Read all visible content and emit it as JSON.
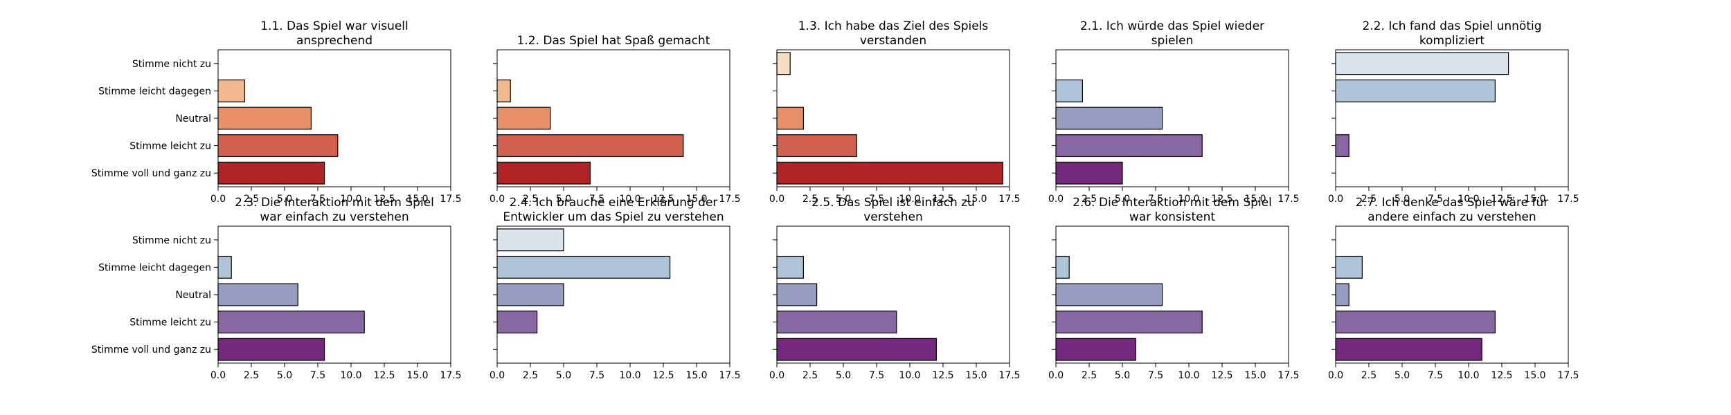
{
  "categories": [
    "Stimme nicht zu",
    "Stimme leicht dagegen",
    "Neutral",
    "Stimme leicht zu",
    "Stimme voll und ganz zu"
  ],
  "xticks": [
    "0.0",
    "2.5",
    "5.0",
    "7.5",
    "10.0",
    "12.5",
    "15.0",
    "17.5"
  ],
  "chart_data": [
    {
      "type": "bar",
      "orientation": "horizontal",
      "title": "1.1. Das Spiel war visuell ansprechend",
      "categories": [
        "Stimme nicht zu",
        "Stimme leicht dagegen",
        "Neutral",
        "Stimme leicht zu",
        "Stimme voll und ganz zu"
      ],
      "values": [
        0,
        2,
        7,
        9,
        8
      ],
      "xlim": [
        0,
        17.5
      ],
      "colors": [
        "#fde0c5",
        "#f0b88c",
        "#e8906a",
        "#d2604f",
        "#b02426"
      ]
    },
    {
      "type": "bar",
      "orientation": "horizontal",
      "title": "1.2. Das Spiel hat Spaß gemacht",
      "categories": [
        "Stimme nicht zu",
        "Stimme leicht dagegen",
        "Neutral",
        "Stimme leicht zu",
        "Stimme voll und ganz zu"
      ],
      "values": [
        0,
        1,
        4,
        14,
        7
      ],
      "xlim": [
        0,
        17.5
      ],
      "colors": [
        "#fde0c5",
        "#f0b88c",
        "#e8906a",
        "#d2604f",
        "#b02426"
      ]
    },
    {
      "type": "bar",
      "orientation": "horizontal",
      "title": "1.3. Ich habe das Ziel des Spiels verstanden",
      "categories": [
        "Stimme nicht zu",
        "Stimme leicht dagegen",
        "Neutral",
        "Stimme leicht zu",
        "Stimme voll und ganz zu"
      ],
      "values": [
        1,
        0,
        2,
        6,
        17
      ],
      "xlim": [
        0,
        17.5
      ],
      "colors": [
        "#f5dfc4",
        "#f0b88c",
        "#e8906a",
        "#d2604f",
        "#b02426"
      ]
    },
    {
      "type": "bar",
      "orientation": "horizontal",
      "title": "2.1. Ich würde das Spiel wieder spielen",
      "categories": [
        "Stimme nicht zu",
        "Stimme leicht dagegen",
        "Neutral",
        "Stimme leicht zu",
        "Stimme voll und ganz zu"
      ],
      "values": [
        0,
        2,
        8,
        11,
        5
      ],
      "xlim": [
        0,
        17.5
      ],
      "colors": [
        "#dbe3ec",
        "#afc4d8",
        "#979cc1",
        "#8868a3",
        "#74297d"
      ]
    },
    {
      "type": "bar",
      "orientation": "horizontal",
      "title": "2.2. Ich fand das Spiel unnötig kompliziert",
      "categories": [
        "Stimme nicht zu",
        "Stimme leicht dagegen",
        "Neutral",
        "Stimme leicht zu",
        "Stimme voll und ganz zu"
      ],
      "values": [
        13,
        12,
        0,
        1,
        0
      ],
      "xlim": [
        0,
        17.5
      ],
      "colors": [
        "#dbe3ec",
        "#afc4d8",
        "#979cc1",
        "#8868a3",
        "#74297d"
      ]
    },
    {
      "type": "bar",
      "orientation": "horizontal",
      "title": "2.3. Die Interaktion mit dem Spiel war einfach zu verstehen",
      "categories": [
        "Stimme nicht zu",
        "Stimme leicht dagegen",
        "Neutral",
        "Stimme leicht zu",
        "Stimme voll und ganz zu"
      ],
      "values": [
        0,
        1,
        6,
        11,
        8
      ],
      "xlim": [
        0,
        17.5
      ],
      "colors": [
        "#dbe3ec",
        "#afc4d8",
        "#979cc1",
        "#8868a3",
        "#74297d"
      ]
    },
    {
      "type": "bar",
      "orientation": "horizontal",
      "title": "2.4. Ich brauche eine Erklärung der Entwickler um das Spiel zu verstehen",
      "categories": [
        "Stimme nicht zu",
        "Stimme leicht dagegen",
        "Neutral",
        "Stimme leicht zu",
        "Stimme voll und ganz zu"
      ],
      "values": [
        5,
        13,
        5,
        3,
        0
      ],
      "xlim": [
        0,
        17.5
      ],
      "colors": [
        "#dbe3ec",
        "#afc4d8",
        "#979cc1",
        "#8868a3",
        "#74297d"
      ]
    },
    {
      "type": "bar",
      "orientation": "horizontal",
      "title": "2.5. Das Spiel ist einfach zu verstehen",
      "categories": [
        "Stimme nicht zu",
        "Stimme leicht dagegen",
        "Neutral",
        "Stimme leicht zu",
        "Stimme voll und ganz zu"
      ],
      "values": [
        0,
        2,
        3,
        9,
        12
      ],
      "xlim": [
        0,
        17.5
      ],
      "colors": [
        "#dbe3ec",
        "#afc4d8",
        "#979cc1",
        "#8868a3",
        "#74297d"
      ]
    },
    {
      "type": "bar",
      "orientation": "horizontal",
      "title": "2.6. Die Interaktion mit dem Spiel war konsistent",
      "categories": [
        "Stimme nicht zu",
        "Stimme leicht dagegen",
        "Neutral",
        "Stimme leicht zu",
        "Stimme voll und ganz zu"
      ],
      "values": [
        0,
        1,
        8,
        11,
        6
      ],
      "xlim": [
        0,
        17.5
      ],
      "colors": [
        "#dbe3ec",
        "#afc4d8",
        "#979cc1",
        "#8868a3",
        "#74297d"
      ]
    },
    {
      "type": "bar",
      "orientation": "horizontal",
      "title": "2.7. Ich denke das Spiel wäre für andere einfach zu verstehen",
      "categories": [
        "Stimme nicht zu",
        "Stimme leicht dagegen",
        "Neutral",
        "Stimme leicht zu",
        "Stimme voll und ganz zu"
      ],
      "values": [
        0,
        2,
        1,
        12,
        11
      ],
      "xlim": [
        0,
        17.5
      ],
      "colors": [
        "#dbe3ec",
        "#afc4d8",
        "#979cc1",
        "#8868a3",
        "#74297d"
      ]
    }
  ]
}
